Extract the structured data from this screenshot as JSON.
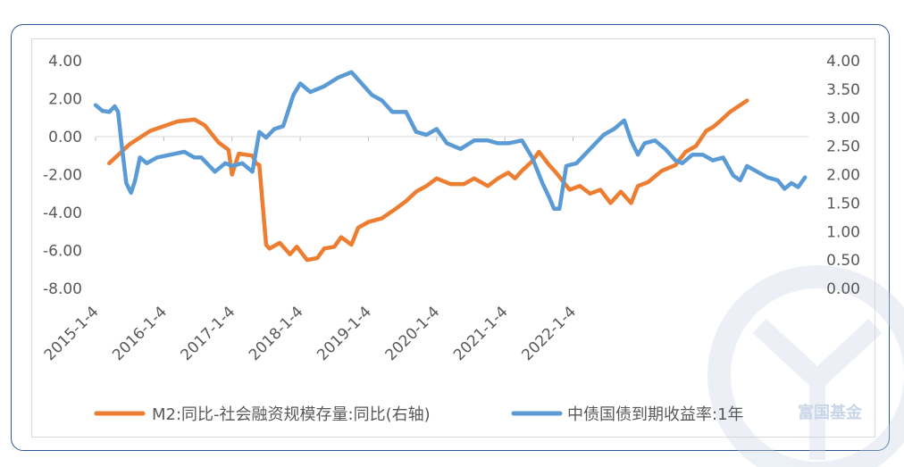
{
  "chart_data": {
    "type": "line",
    "title": "",
    "x_tick_labels": [
      "2015-1-4",
      "2016-1-4",
      "2017-1-4",
      "2018-1-4",
      "2019-1-4",
      "2020-1-4",
      "2021-1-4",
      "2022-1-4"
    ],
    "left_axis": {
      "ylim": [
        -8,
        4
      ],
      "ticks": [
        "4.00",
        "2.00",
        "0.00",
        "-2.00",
        "-4.00",
        "-6.00",
        "-8.00"
      ]
    },
    "right_axis": {
      "ylim": [
        0,
        4
      ],
      "ticks": [
        "4.00",
        "3.50",
        "3.00",
        "2.50",
        "2.00",
        "1.50",
        "1.00",
        "0.50",
        "0.00"
      ]
    },
    "legend_position": "bottom",
    "series": [
      {
        "name": "M2:同比-社会融资规模存量:同比(右轴)",
        "color": "#ed7d31",
        "axis": "left",
        "points": [
          [
            2015.2,
            -1.4
          ],
          [
            2015.5,
            -0.4
          ],
          [
            2015.8,
            0.3
          ],
          [
            2016.2,
            0.8
          ],
          [
            2016.45,
            0.9
          ],
          [
            2016.6,
            0.6
          ],
          [
            2016.8,
            -0.3
          ],
          [
            2016.95,
            -0.7
          ],
          [
            2017.0,
            -2.0
          ],
          [
            2017.1,
            -0.9
          ],
          [
            2017.3,
            -1.0
          ],
          [
            2017.35,
            -1.4
          ],
          [
            2017.4,
            -1.5
          ],
          [
            2017.5,
            -5.7
          ],
          [
            2017.55,
            -5.9
          ],
          [
            2017.7,
            -5.6
          ],
          [
            2017.85,
            -6.2
          ],
          [
            2017.95,
            -5.8
          ],
          [
            2018.1,
            -6.5
          ],
          [
            2018.25,
            -6.4
          ],
          [
            2018.35,
            -5.9
          ],
          [
            2018.5,
            -5.8
          ],
          [
            2018.6,
            -5.3
          ],
          [
            2018.75,
            -5.7
          ],
          [
            2018.85,
            -4.8
          ],
          [
            2019.0,
            -4.5
          ],
          [
            2019.2,
            -4.3
          ],
          [
            2019.4,
            -3.8
          ],
          [
            2019.55,
            -3.4
          ],
          [
            2019.7,
            -2.9
          ],
          [
            2019.85,
            -2.6
          ],
          [
            2020.0,
            -2.2
          ],
          [
            2020.2,
            -2.5
          ],
          [
            2020.4,
            -2.5
          ],
          [
            2020.55,
            -2.2
          ],
          [
            2020.75,
            -2.6
          ],
          [
            2020.9,
            -2.2
          ],
          [
            2021.05,
            -1.9
          ],
          [
            2021.15,
            -2.2
          ],
          [
            2021.25,
            -1.8
          ],
          [
            2021.4,
            -1.3
          ],
          [
            2021.5,
            -0.8
          ],
          [
            2021.65,
            -1.5
          ],
          [
            2021.75,
            -1.9
          ],
          [
            2021.95,
            -2.8
          ],
          [
            2022.1,
            -2.6
          ],
          [
            2022.25,
            -3.0
          ],
          [
            2022.4,
            -2.8
          ],
          [
            2022.55,
            -3.5
          ],
          [
            2022.7,
            -2.9
          ],
          [
            2022.85,
            -3.5
          ],
          [
            2022.95,
            -2.6
          ],
          [
            2023.1,
            -2.4
          ],
          [
            2023.3,
            -1.8
          ],
          [
            2023.5,
            -1.5
          ],
          [
            2023.65,
            -0.8
          ],
          [
            2023.8,
            -0.5
          ],
          [
            2023.95,
            0.3
          ],
          [
            2024.05,
            0.5
          ],
          [
            2024.15,
            0.8
          ],
          [
            2024.3,
            1.3
          ],
          [
            2024.55,
            1.9
          ]
        ]
      },
      {
        "name": "中债国债到期收益率:1年",
        "color": "#5b9bd5",
        "axis": "right",
        "points": [
          [
            2015.0,
            3.22
          ],
          [
            2015.1,
            3.12
          ],
          [
            2015.2,
            3.1
          ],
          [
            2015.28,
            3.2
          ],
          [
            2015.33,
            3.1
          ],
          [
            2015.38,
            2.55
          ],
          [
            2015.45,
            1.85
          ],
          [
            2015.52,
            1.68
          ],
          [
            2015.58,
            1.9
          ],
          [
            2015.65,
            2.3
          ],
          [
            2015.75,
            2.2
          ],
          [
            2015.9,
            2.3
          ],
          [
            2016.1,
            2.35
          ],
          [
            2016.3,
            2.4
          ],
          [
            2016.45,
            2.3
          ],
          [
            2016.55,
            2.3
          ],
          [
            2016.75,
            2.05
          ],
          [
            2016.9,
            2.2
          ],
          [
            2017.0,
            2.15
          ],
          [
            2017.15,
            2.2
          ],
          [
            2017.3,
            2.05
          ],
          [
            2017.4,
            2.75
          ],
          [
            2017.5,
            2.65
          ],
          [
            2017.62,
            2.8
          ],
          [
            2017.75,
            2.85
          ],
          [
            2017.9,
            3.4
          ],
          [
            2018.0,
            3.6
          ],
          [
            2018.15,
            3.45
          ],
          [
            2018.35,
            3.55
          ],
          [
            2018.55,
            3.7
          ],
          [
            2018.75,
            3.8
          ],
          [
            2018.9,
            3.6
          ],
          [
            2019.05,
            3.4
          ],
          [
            2019.2,
            3.3
          ],
          [
            2019.35,
            3.1
          ],
          [
            2019.55,
            3.1
          ],
          [
            2019.7,
            2.75
          ],
          [
            2019.85,
            2.7
          ],
          [
            2020.0,
            2.8
          ],
          [
            2020.15,
            2.55
          ],
          [
            2020.35,
            2.45
          ],
          [
            2020.55,
            2.6
          ],
          [
            2020.75,
            2.6
          ],
          [
            2020.9,
            2.55
          ],
          [
            2021.05,
            2.55
          ],
          [
            2021.25,
            2.6
          ],
          [
            2021.4,
            2.3
          ],
          [
            2021.5,
            2.0
          ],
          [
            2021.55,
            1.85
          ],
          [
            2021.65,
            1.6
          ],
          [
            2021.72,
            1.4
          ],
          [
            2021.8,
            1.4
          ],
          [
            2021.9,
            2.15
          ],
          [
            2022.05,
            2.2
          ],
          [
            2022.25,
            2.45
          ],
          [
            2022.45,
            2.7
          ],
          [
            2022.6,
            2.8
          ],
          [
            2022.75,
            2.95
          ],
          [
            2022.85,
            2.6
          ],
          [
            2022.95,
            2.35
          ],
          [
            2023.05,
            2.55
          ],
          [
            2023.2,
            2.6
          ],
          [
            2023.35,
            2.45
          ],
          [
            2023.5,
            2.25
          ],
          [
            2023.6,
            2.2
          ],
          [
            2023.75,
            2.35
          ],
          [
            2023.9,
            2.35
          ],
          [
            2024.05,
            2.25
          ],
          [
            2024.2,
            2.3
          ],
          [
            2024.35,
            1.98
          ],
          [
            2024.45,
            1.9
          ],
          [
            2024.55,
            2.15
          ],
          [
            2024.7,
            2.05
          ],
          [
            2024.85,
            1.95
          ],
          [
            2025.0,
            1.9
          ],
          [
            2025.1,
            1.75
          ],
          [
            2025.2,
            1.85
          ],
          [
            2025.3,
            1.78
          ],
          [
            2025.4,
            1.95
          ]
        ]
      }
    ]
  },
  "watermark": {
    "text": "富国基金",
    "color": "#c9d6e8"
  }
}
